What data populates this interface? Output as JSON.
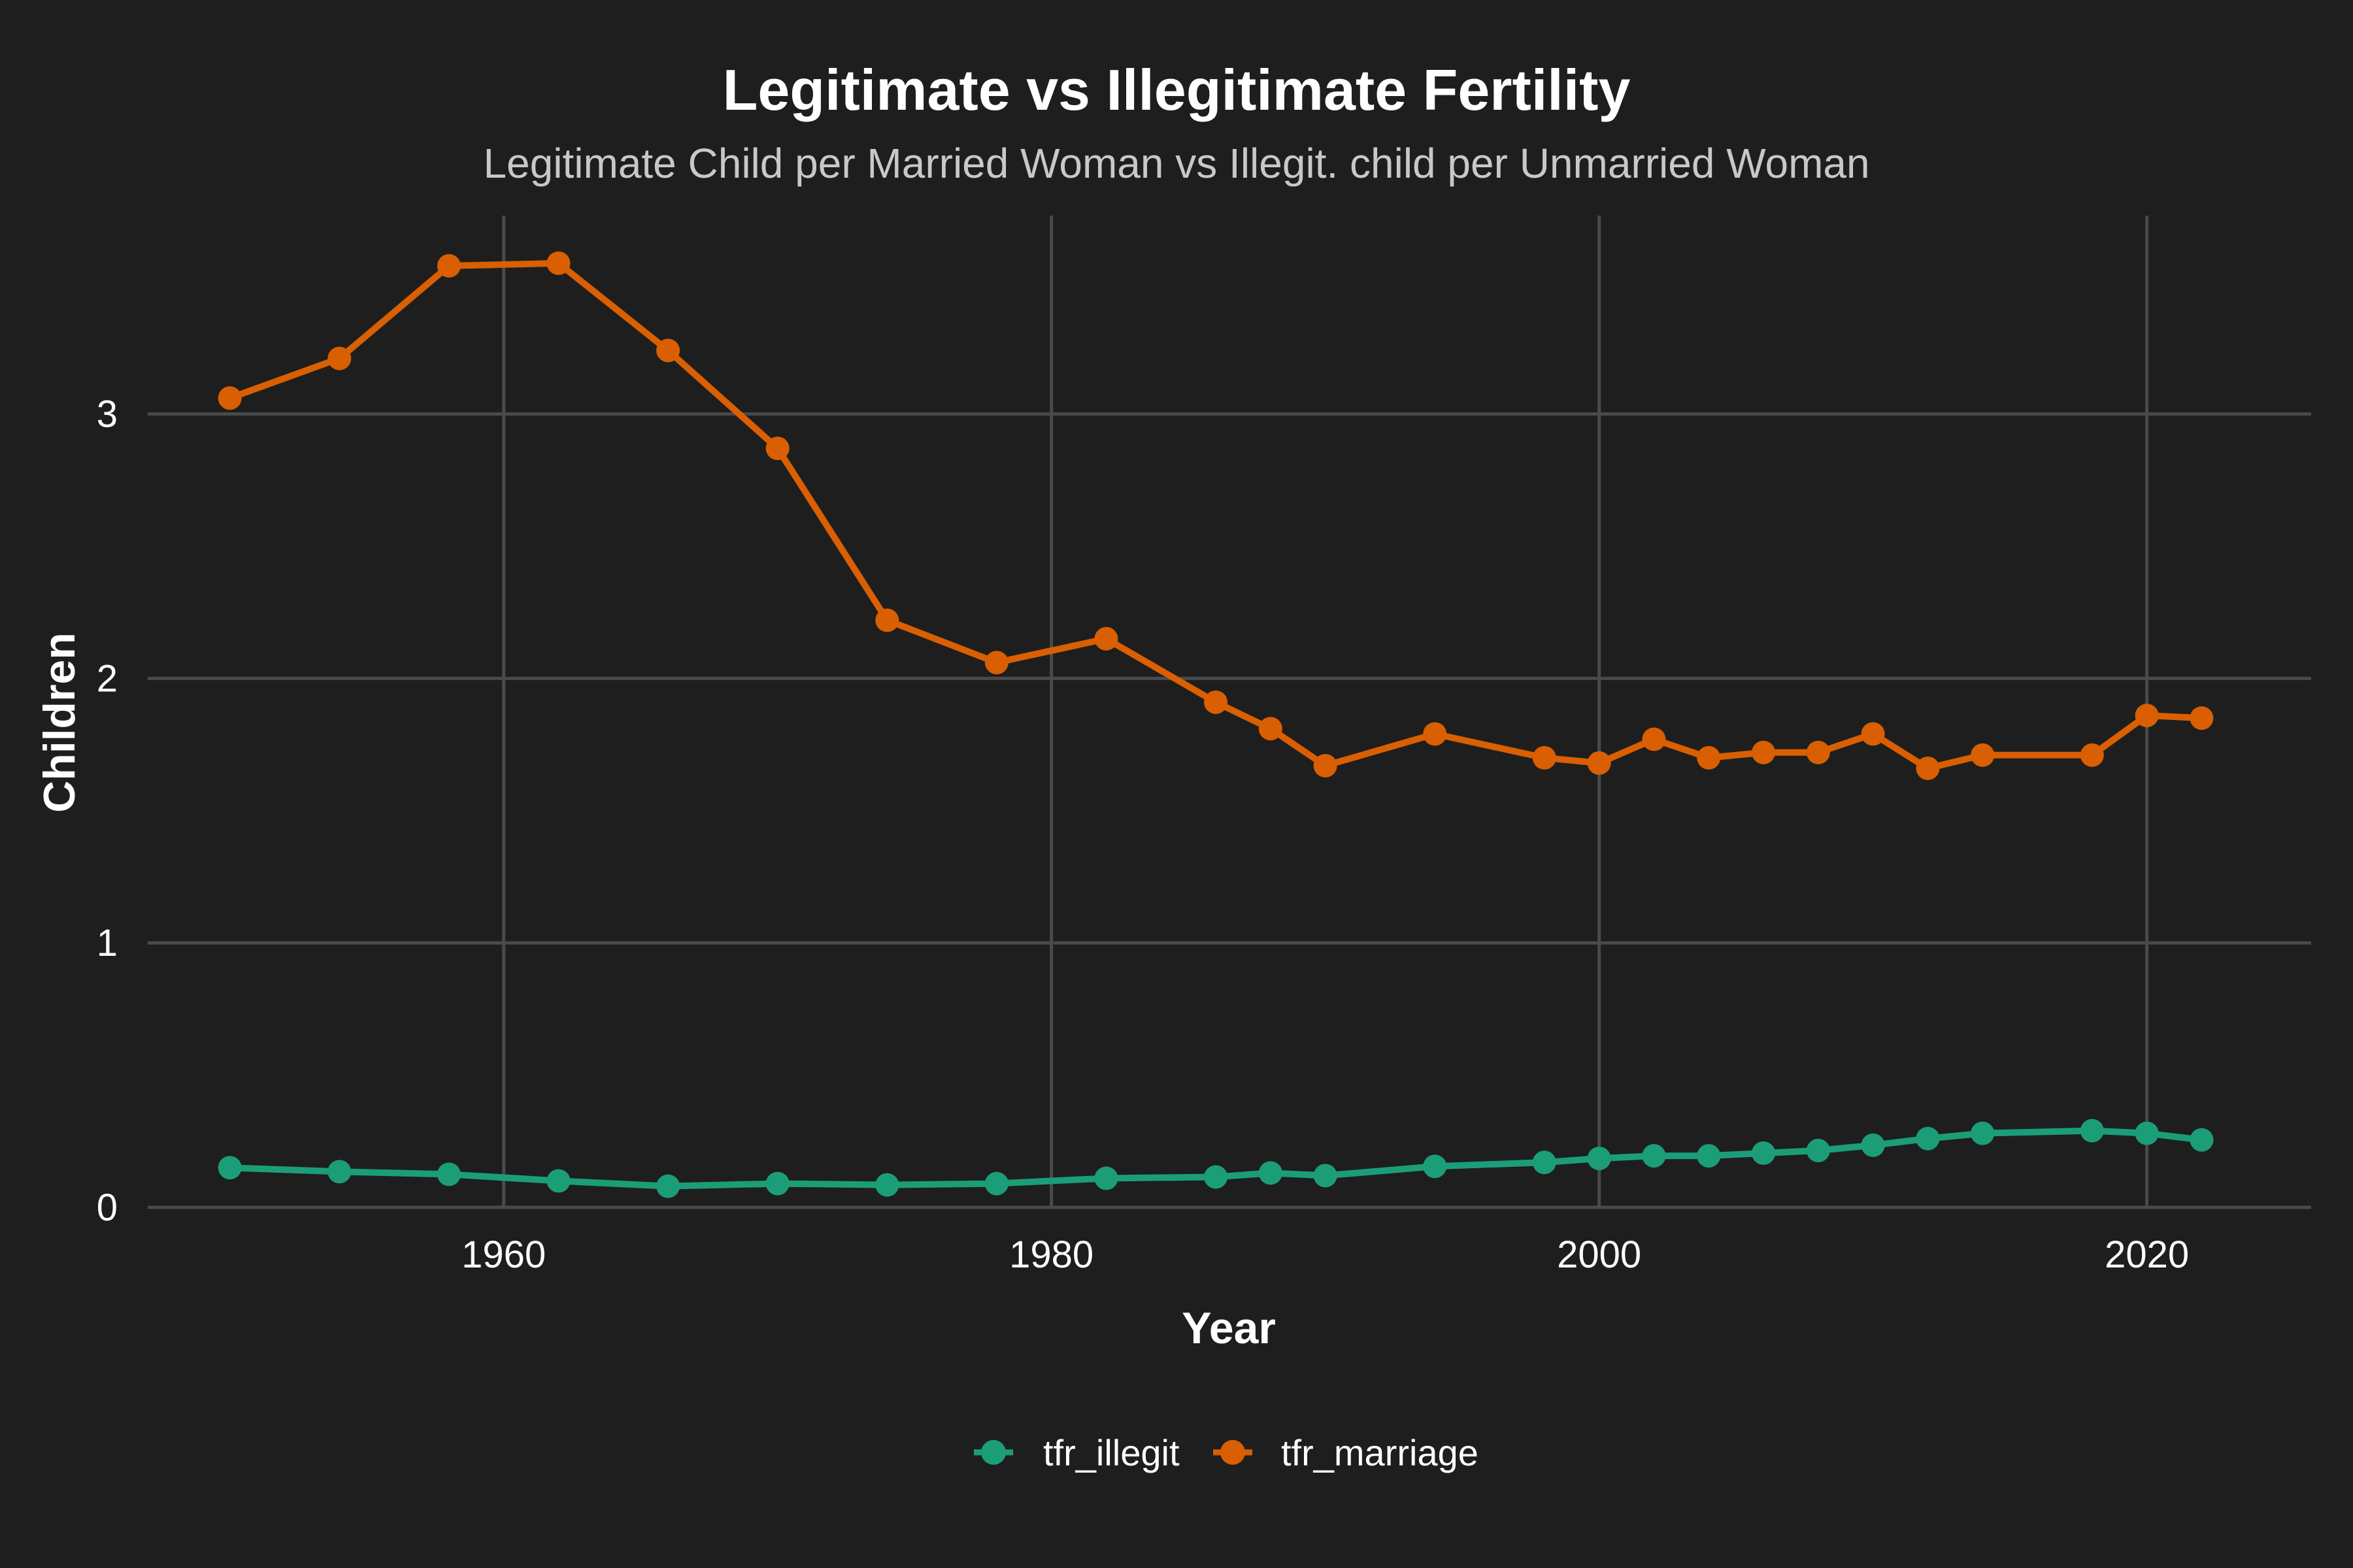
{
  "chart_data": {
    "type": "line",
    "title": "Legitimate vs Illegitimate Fertility",
    "subtitle": "Legitimate Child per Married Woman vs Illegit. child per Unmarried Woman",
    "xlabel": "Year",
    "ylabel": "Children",
    "xlim": [
      1947,
      2026
    ],
    "ylim": [
      0,
      3.75
    ],
    "x_ticks": [
      1960,
      1980,
      2000,
      2020
    ],
    "y_ticks": [
      0,
      1,
      2,
      3
    ],
    "grid": true,
    "legend_position": "bottom",
    "series": [
      {
        "name": "tfr_illegit",
        "color": "#1b9e77",
        "x": [
          1950,
          1954,
          1958,
          1962,
          1966,
          1970,
          1974,
          1978,
          1982,
          1986,
          1988,
          1990,
          1994,
          1998,
          2000,
          2002,
          2004,
          2006,
          2008,
          2010,
          2012,
          2014,
          2018,
          2020,
          2022
        ],
        "values": [
          0.15,
          0.135,
          0.125,
          0.1,
          0.08,
          0.09,
          0.085,
          0.09,
          0.11,
          0.115,
          0.13,
          0.12,
          0.155,
          0.17,
          0.185,
          0.195,
          0.195,
          0.205,
          0.215,
          0.235,
          0.26,
          0.28,
          0.29,
          0.28,
          0.255
        ]
      },
      {
        "name": "tfr_marriage",
        "color": "#d95f02",
        "x": [
          1950,
          1954,
          1958,
          1962,
          1966,
          1970,
          1974,
          1978,
          1982,
          1986,
          1988,
          1990,
          1994,
          1998,
          2000,
          2002,
          2004,
          2006,
          2008,
          2010,
          2012,
          2014,
          2018,
          2020,
          2022
        ],
        "values": [
          3.06,
          3.21,
          3.56,
          3.57,
          3.24,
          2.87,
          2.22,
          2.06,
          2.15,
          1.91,
          1.81,
          1.67,
          1.79,
          1.7,
          1.68,
          1.77,
          1.7,
          1.72,
          1.72,
          1.79,
          1.66,
          1.71,
          1.71,
          1.86,
          1.85
        ]
      }
    ]
  }
}
